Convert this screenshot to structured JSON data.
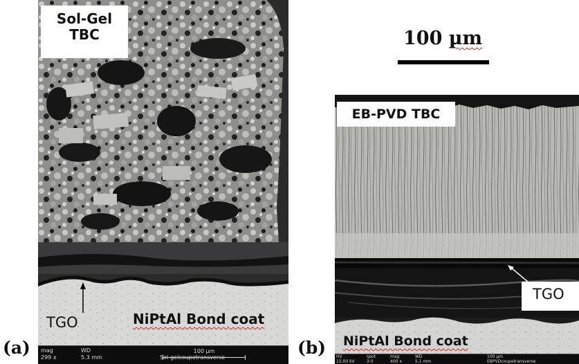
{
  "panel_a": {
    "letter": "(a)",
    "coating_label_line1": "Sol-Gel",
    "coating_label_line2": "TBC",
    "tgo_label": "TGO",
    "bond_coat_label": "NiPtAl Bond coat",
    "sem_bar": {
      "mag_label": "mag",
      "mag_value": "299 x",
      "wd_label": "WD",
      "wd_value": "5.3 mm",
      "scale_text": "100 µm",
      "filename": "Sol-gelcoupetransverse"
    }
  },
  "scale_bar": {
    "value": "100",
    "unit": "µm"
  },
  "panel_b": {
    "letter": "(b)",
    "coating_label": "EB-PVD TBC",
    "tgo_label": "TGO",
    "bond_coat_label": "NiPtAl Bond coat",
    "sem_bar": {
      "hv_label": "HV",
      "hv_value": "15.00 kV",
      "spot_label": "spot",
      "spot_value": "3.0",
      "mag_label": "mag",
      "mag_value": "400 x",
      "wd_label": "WD",
      "wd_value": "5.1 mm",
      "scale_text": "100 µm",
      "filename": "EBPVDcoupetransverse"
    }
  },
  "colors": {
    "underline_wavy": "#d22",
    "sem_background": "#0d0d0d",
    "bond_coat": "#d6d6d4",
    "ceramic_light": "#b4b4b0"
  }
}
